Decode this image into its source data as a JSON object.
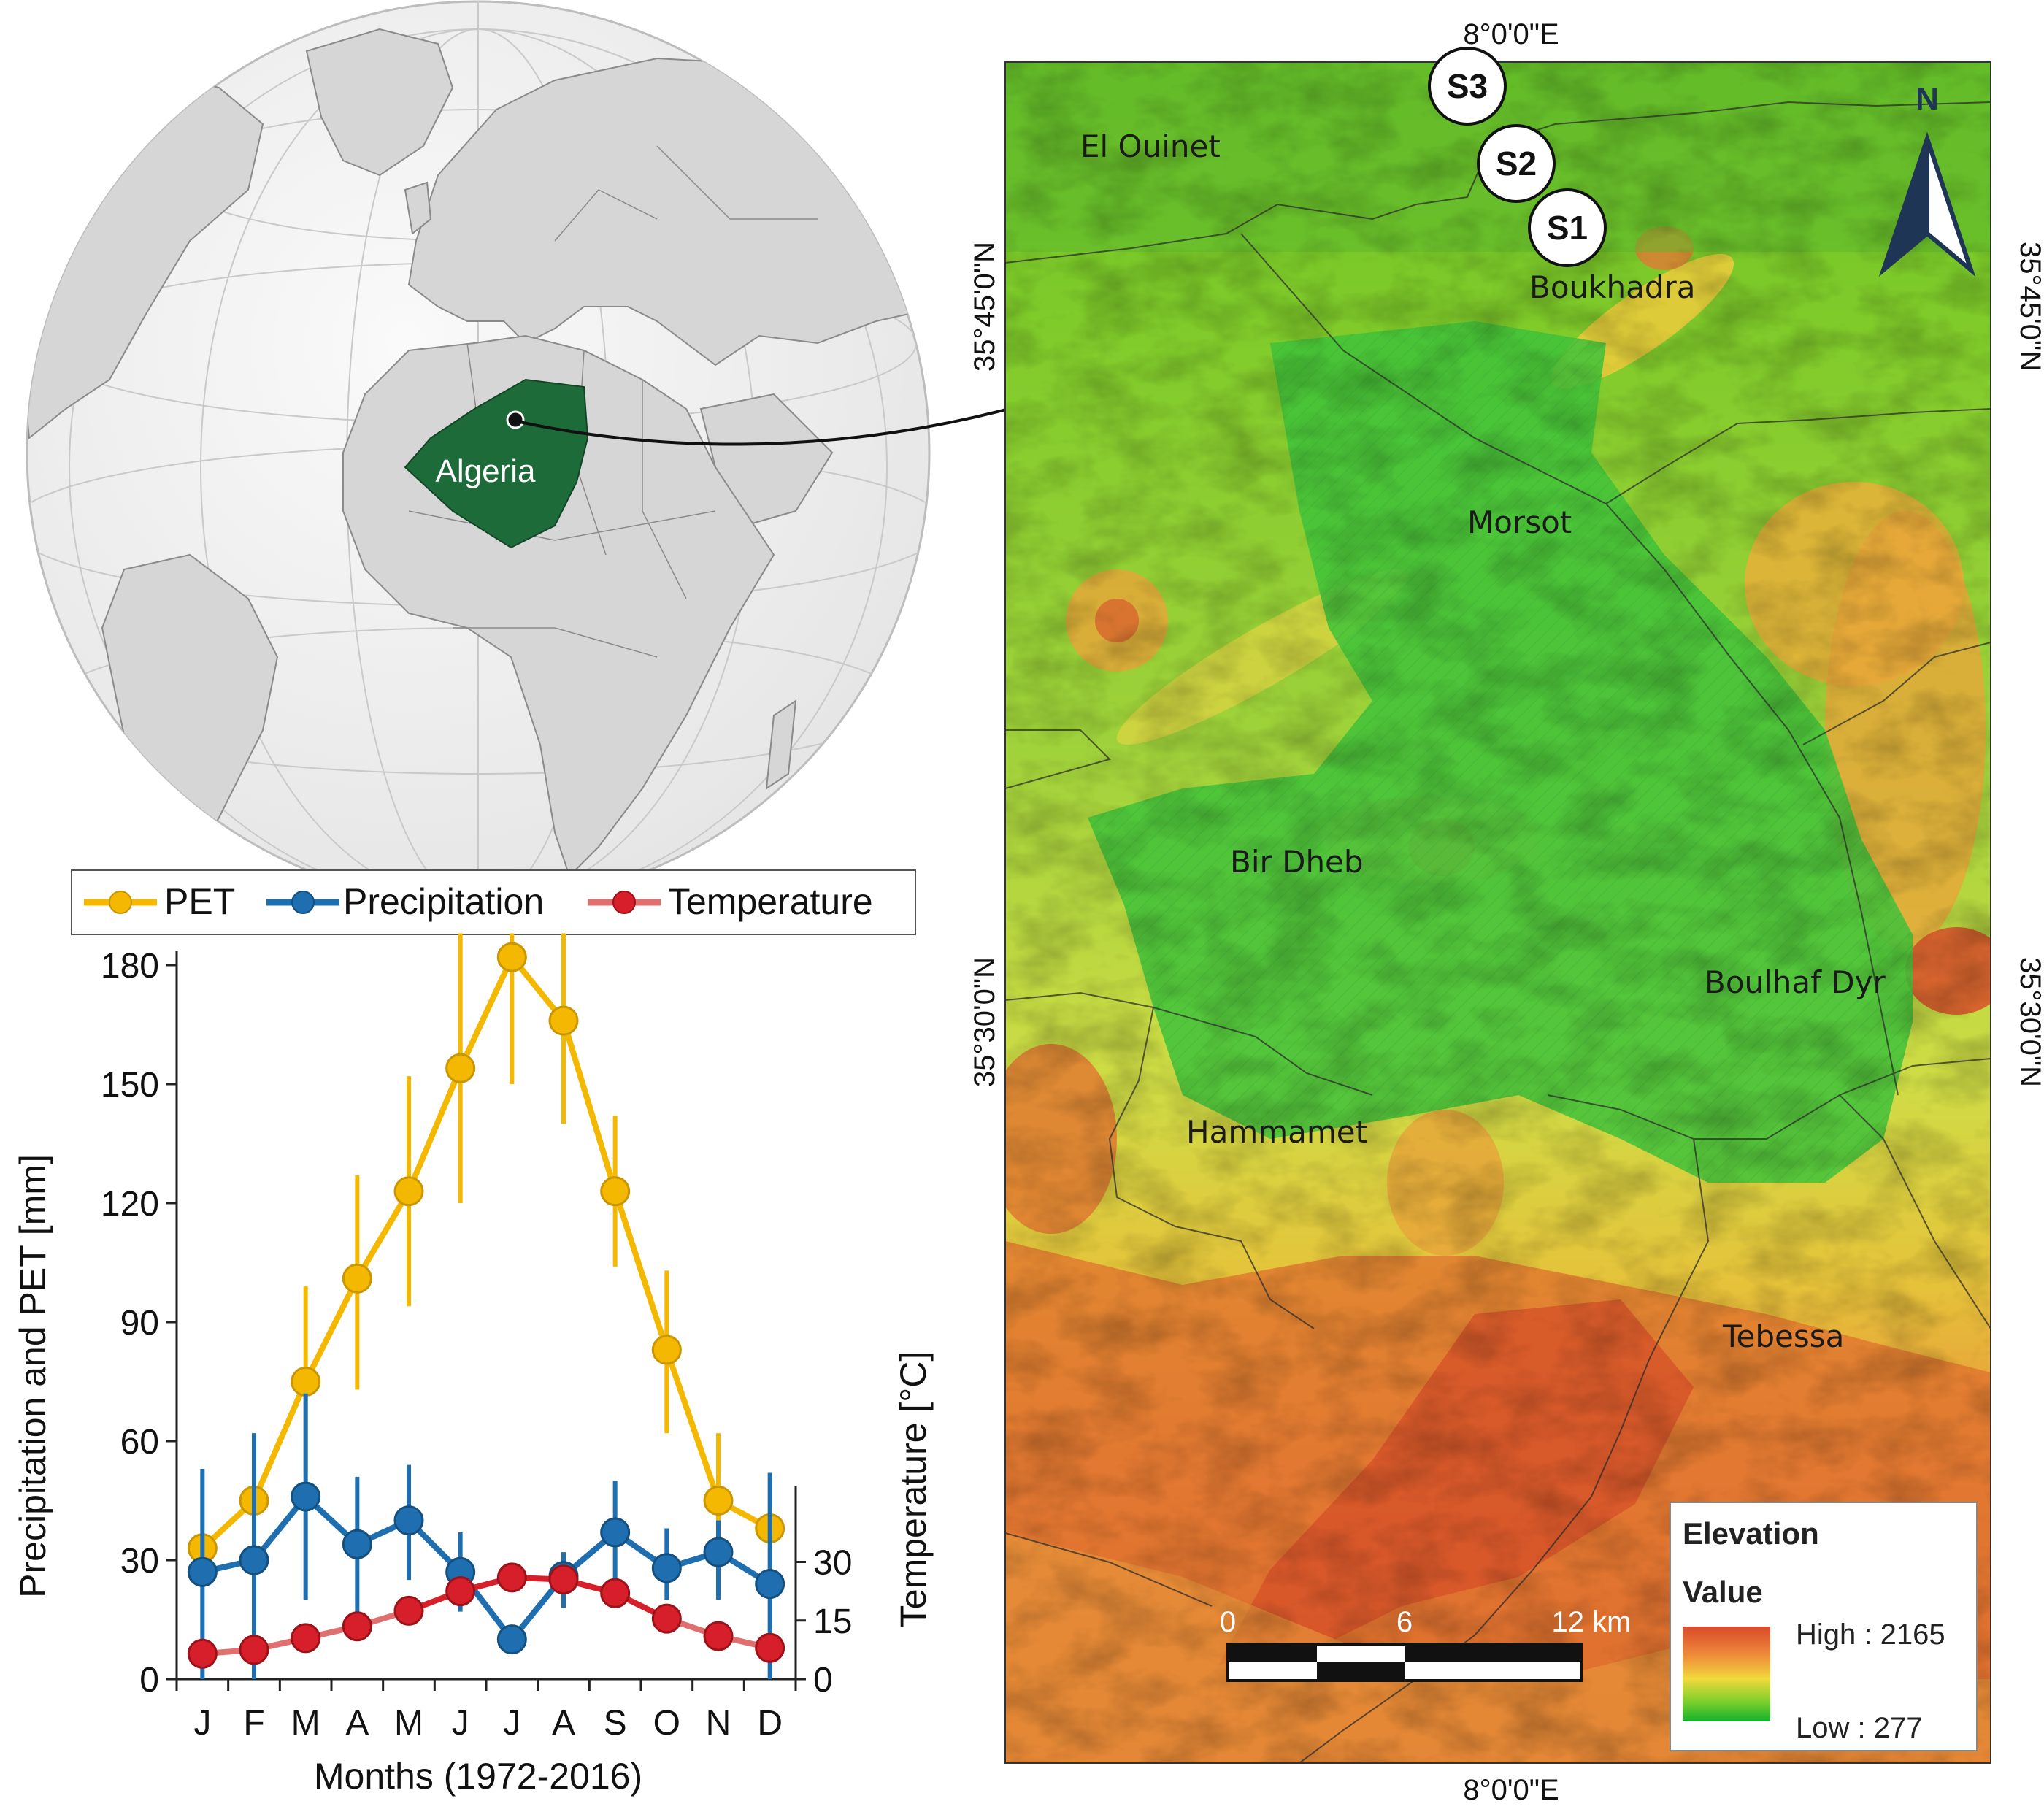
{
  "globe": {
    "country_label": "Algeria",
    "country_color": "#1e6b3a",
    "land_color": "#d9d9d9",
    "ocean_color": "#f2f2f2"
  },
  "chart_data": {
    "type": "line",
    "categories": [
      "J",
      "F",
      "M",
      "A",
      "M",
      "J",
      "J",
      "A",
      "S",
      "O",
      "N",
      "D"
    ],
    "xlabel": "Months (1972-2016)",
    "ylabel": "Precipitation and PET [mm]",
    "y2label": "Temperature  [°C]",
    "ylim": [
      0,
      180
    ],
    "yticks": [
      "0",
      "30",
      "60",
      "90",
      "120",
      "150",
      "180"
    ],
    "y2lim": [
      0,
      40
    ],
    "y2ticks": [
      "0",
      "15",
      "30"
    ],
    "legend_position": "top",
    "series": [
      {
        "name": "PET",
        "color": "#f5b800",
        "axis": "left",
        "values": [
          33,
          45,
          75,
          101,
          123,
          154,
          182,
          166,
          123,
          83,
          45,
          38
        ],
        "err_low": [
          0,
          0,
          52,
          73,
          94,
          120,
          150,
          140,
          104,
          62,
          28,
          0
        ],
        "err_high": [
          0,
          0,
          99,
          127,
          152,
          188,
          188,
          188,
          142,
          103,
          62,
          0
        ]
      },
      {
        "name": "Precipitation",
        "color": "#1f6fb0",
        "axis": "left",
        "values": [
          27,
          30,
          46,
          34,
          40,
          27,
          10,
          26,
          37,
          28,
          32,
          24
        ],
        "err_low": [
          0,
          0,
          20,
          17,
          25,
          17,
          10,
          18,
          25,
          20,
          20,
          0
        ],
        "err_high": [
          53,
          62,
          72,
          51,
          54,
          37,
          10,
          32,
          50,
          38,
          40,
          52
        ]
      },
      {
        "name": "Temperature",
        "color": "#d61f2a",
        "axis": "right",
        "values": [
          6.5,
          7.5,
          10.5,
          13.5,
          17.5,
          22.5,
          26,
          25.5,
          22,
          15.5,
          11,
          8
        ]
      }
    ]
  },
  "map": {
    "top_longitude": "8°0'0\"E",
    "bottom_longitude": "8°0'0\"E",
    "left_lat_top": "35°45'0\"N",
    "left_lat_bottom": "35°30'0\"N",
    "right_lat_top": "35°45'0\"N",
    "right_lat_bottom": "35°30'0\"N",
    "north_label": "N",
    "places": [
      "El Ouinet",
      "Boukhadra",
      "Morsot",
      "Bir Dheb",
      "Boulhaf Dyr",
      "Hammamet",
      "Tebessa"
    ],
    "stations": [
      "S3",
      "S2",
      "S1"
    ],
    "scalebar": {
      "ticks": [
        "0",
        "6",
        "12 km"
      ]
    },
    "legend": {
      "title": "Elevation",
      "subtitle": "Value",
      "high": "High : 2165",
      "low": "Low : 277",
      "high_value": 2165,
      "low_value": 277
    }
  }
}
